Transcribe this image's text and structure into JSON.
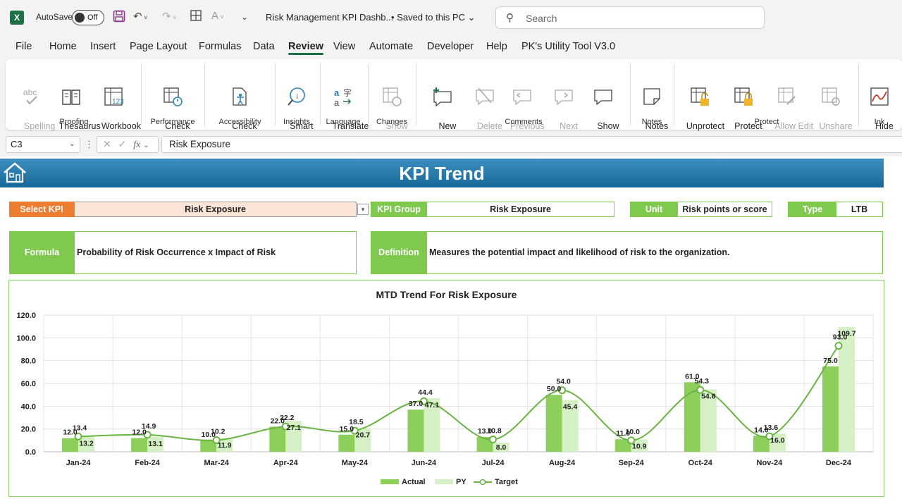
{
  "titlebar": {
    "autosave_label": "AutoSave",
    "autosave_state": "Off",
    "file_name": "Risk Management KPI Dashb...",
    "save_status": "• Saved to this PC",
    "search_placeholder": "Search"
  },
  "menu": [
    "File",
    "Home",
    "Insert",
    "Page Layout",
    "Formulas",
    "Data",
    "Review",
    "View",
    "Automate",
    "Developer",
    "Help",
    "PK's Utility Tool V3.0"
  ],
  "ribbon": {
    "buttons": [
      {
        "label": "Spelling"
      },
      {
        "label": "Thesaurus"
      },
      {
        "label": "Workbook\nStatistics"
      },
      {
        "label": "Check\nPerformance"
      },
      {
        "label": "Check\nAccessibility ˅"
      },
      {
        "label": "Smart\nLookup"
      },
      {
        "label": "Translate"
      },
      {
        "label": "Show\nChanges"
      },
      {
        "label": "New\nComment"
      },
      {
        "label": "Delete"
      },
      {
        "label": "Previous\nComment"
      },
      {
        "label": "Next\nComment"
      },
      {
        "label": "Show\nComments"
      },
      {
        "label": "Notes\n˅"
      },
      {
        "label": "Unprotect\nSheet"
      },
      {
        "label": "Protect\nWorkbook"
      },
      {
        "label": "Allow Edit\nRanges"
      },
      {
        "label": "Unshare\nWorkbook"
      },
      {
        "label": "Hide\nInk ˅"
      }
    ],
    "groups": [
      "Proofing",
      "Performance",
      "Accessibility",
      "Insights",
      "Language",
      "Changes",
      "Comments",
      "Notes",
      "Protect",
      "Ink"
    ]
  },
  "formula_bar": {
    "cell_ref": "C3",
    "fx": "fx",
    "content": "Risk Exposure"
  },
  "sheet": {
    "banner_title": "KPI Trend",
    "select_kpi_label": "Select KPI",
    "select_kpi_value": "Risk Exposure",
    "kpi_group_label": "KPI Group",
    "kpi_group_value": "Risk Exposure",
    "unit_label": "Unit",
    "unit_value": "Risk points or score",
    "type_label": "Type",
    "type_value": "LTB",
    "formula_label": "Formula",
    "formula_value": "Probability of Risk Occurrence x Impact of Risk",
    "definition_label": "Definition",
    "definition_value": "Measures the potential impact and likelihood of risk to the organization.",
    "colors": {
      "orange": "#ed7d31",
      "green": "#7fc94f",
      "blue": "#2b7fb3",
      "input_fill": "#fbe5d6"
    }
  },
  "chart_data": {
    "type": "bar",
    "title": "MTD Trend For Risk Exposure",
    "categories": [
      "Jan-24",
      "Feb-24",
      "Mar-24",
      "Apr-24",
      "May-24",
      "Jun-24",
      "Jul-24",
      "Aug-24",
      "Sep-24",
      "Oct-24",
      "Nov-24",
      "Dec-24"
    ],
    "ylim": [
      0,
      120
    ],
    "yticks": [
      "0.0",
      "20.0",
      "40.0",
      "60.0",
      "80.0",
      "100.0",
      "120.0"
    ],
    "series": [
      {
        "name": "Actual",
        "kind": "bar",
        "color": "#8ccf5a",
        "values": [
          12.0,
          12.0,
          10.0,
          22.0,
          15.0,
          37.0,
          13.0,
          50.0,
          11.0,
          61.0,
          14.0,
          75.0
        ]
      },
      {
        "name": "PY",
        "kind": "bar",
        "color": "#d6f0c6",
        "values": [
          13.2,
          13.1,
          11.9,
          27.1,
          20.7,
          47.1,
          8.0,
          45.4,
          10.9,
          54.8,
          16.0,
          109.7
        ]
      },
      {
        "name": "Target",
        "kind": "line",
        "color": "#6ab443",
        "values": [
          13.4,
          14.9,
          10.2,
          22.2,
          18.5,
          44.4,
          10.8,
          54.0,
          10.0,
          54.3,
          13.6,
          93.0
        ]
      }
    ],
    "grid": true,
    "legend": "bottom"
  }
}
